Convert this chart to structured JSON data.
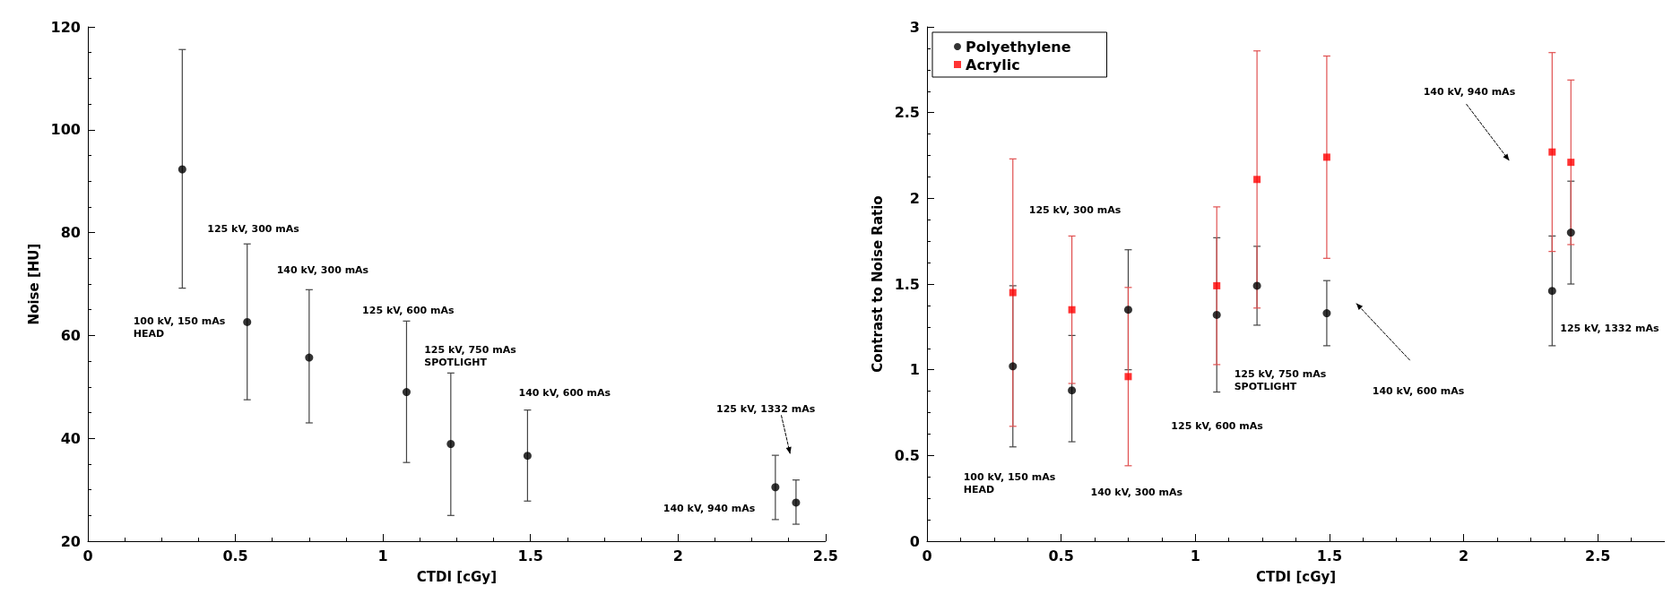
{
  "chart_data": [
    {
      "type": "scatter",
      "xlabel": "CTDI [cGy]",
      "ylabel": "Noise [HU]",
      "x": [
        0.32,
        0.54,
        0.75,
        1.08,
        1.23,
        1.49,
        2.33,
        2.4
      ],
      "xlim": [
        0,
        2.5
      ],
      "xticks": [
        0,
        0.5,
        1,
        1.5,
        2,
        2.5
      ],
      "ylim": [
        20,
        120
      ],
      "yticks": [
        20,
        40,
        60,
        80,
        100,
        120
      ],
      "grid": false,
      "legend": false,
      "marker": "circle",
      "series": [
        {
          "color": "#000000",
          "values": [
            92.3,
            62.6,
            55.7,
            49,
            38.9,
            36.6,
            30.5,
            27.5
          ],
          "errors": [
            [
              69.2,
              115.6
            ],
            [
              47.5,
              77.8
            ],
            [
              43,
              68.9
            ],
            [
              35.3,
              62.8
            ],
            [
              25,
              52.7
            ],
            [
              27.8,
              45.5
            ],
            [
              24.2,
              36.7
            ],
            [
              23.3,
              31.9
            ]
          ]
        }
      ],
      "annotations": [
        "100 kV, 150 mAs\nHEAD",
        "125 kV, 300 mAs",
        "140 kV, 300 mAs",
        "125 kV, 600 mAs",
        "125 kV, 750 mAs\nSPOTLIGHT",
        "140 kV, 600 mAs",
        "125 kV, 1332 mAs",
        "140 kV, 940 mAs"
      ]
    },
    {
      "type": "scatter",
      "xlabel": "CTDI [cGy]",
      "ylabel": "Contrast to Noise Ratio",
      "x": [
        0.32,
        0.54,
        0.75,
        1.08,
        1.23,
        1.49,
        2.33,
        2.4
      ],
      "xlim": [
        0,
        2.75
      ],
      "xticks": [
        0,
        0.5,
        1,
        1.5,
        2,
        2.5
      ],
      "ylim": [
        0,
        3
      ],
      "yticks": [
        0,
        0.5,
        1,
        1.5,
        2,
        2.5,
        3
      ],
      "grid": false,
      "legend": "top left",
      "series": [
        {
          "name": "Polyethylene",
          "color": "#000000",
          "marker": "circle",
          "values": [
            1.02,
            0.88,
            1.35,
            1.32,
            1.49,
            1.33,
            1.46,
            1.8
          ],
          "errors": [
            [
              0.55,
              1.49
            ],
            [
              0.58,
              1.2
            ],
            [
              1.0,
              1.7
            ],
            [
              0.87,
              1.77
            ],
            [
              1.26,
              1.72
            ],
            [
              1.14,
              1.52
            ],
            [
              1.14,
              1.78
            ],
            [
              1.5,
              2.1
            ]
          ]
        },
        {
          "name": "Acrylic",
          "color": "#ff0000",
          "marker": "square",
          "values": [
            1.45,
            1.35,
            0.96,
            1.49,
            2.11,
            2.24,
            2.27,
            2.21
          ],
          "errors": [
            [
              0.67,
              2.23
            ],
            [
              0.92,
              1.78
            ],
            [
              0.44,
              1.48
            ],
            [
              1.03,
              1.95
            ],
            [
              1.36,
              2.86
            ],
            [
              1.65,
              2.83
            ],
            [
              1.69,
              2.85
            ],
            [
              1.73,
              2.69
            ]
          ]
        }
      ],
      "annotations": [
        "125 kV, 300 mAs",
        "100 kV, 150 mAs\nHEAD",
        "140 kV, 300 mAs",
        "125 kV, 600 mAs",
        "125 kV, 750 mAs\nSPOTLIGHT",
        "140 kV, 600 mAs",
        "140 kV, 940 mAs",
        "125 kV, 1332 mAs"
      ]
    }
  ]
}
